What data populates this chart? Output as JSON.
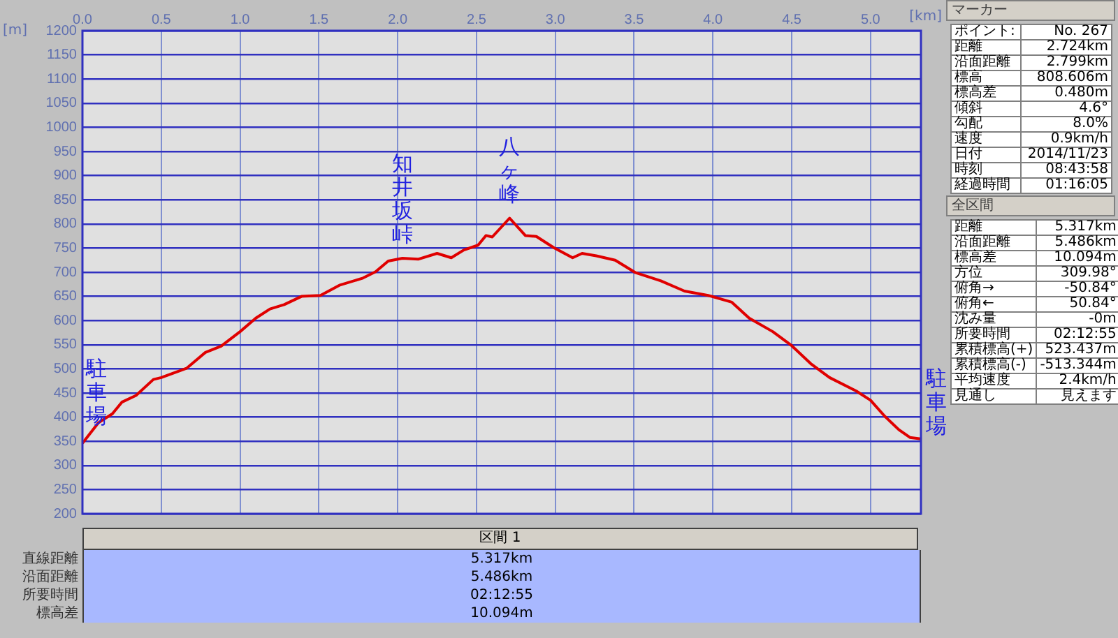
{
  "chart_data": [
    {
      "type": "line",
      "xlabel": "[km]",
      "ylabel": "[m]",
      "xlim": [
        0,
        5.32
      ],
      "xticks": [
        {
          "value": 0,
          "label": "0.0"
        },
        0.5,
        {
          "value": 1,
          "label": "1.0"
        },
        1.5,
        {
          "value": 2,
          "label": "2.0"
        },
        2.5,
        {
          "value": 3,
          "label": "3.0"
        },
        3.5,
        {
          "value": 4,
          "label": "4.0"
        },
        4.5,
        {
          "value": 5,
          "label": "5.0"
        }
      ],
      "ylim": [
        200,
        1200
      ],
      "yticks": [
        200,
        250,
        300,
        350,
        400,
        450,
        500,
        550,
        600,
        650,
        700,
        750,
        800,
        850,
        900,
        950,
        1000,
        1050,
        1100,
        1150,
        1200
      ],
      "grid": true,
      "legend": false,
      "marker": "none",
      "line_style": "solid",
      "series": [
        {
          "color": "#e00000",
          "x": [
            0,
            0.1,
            0.19,
            0.25,
            0.34,
            0.45,
            0.5,
            0.66,
            0.78,
            0.88,
            1.0,
            1.1,
            1.19,
            1.28,
            1.39,
            1.51,
            1.63,
            1.78,
            1.86,
            1.94,
            2.03,
            2.13,
            2.25,
            2.34,
            2.42,
            2.51,
            2.56,
            2.6,
            2.71,
            2.81,
            2.88,
            2.99,
            3.11,
            3.17,
            3.26,
            3.38,
            3.51,
            3.67,
            3.82,
            3.97,
            4.12,
            4.23,
            4.38,
            4.5,
            4.62,
            4.74,
            4.91,
            5.0,
            5.09,
            5.18,
            5.25,
            5.32
          ],
          "values": [
            346,
            388,
            407,
            431,
            445,
            478,
            482,
            501,
            534,
            547,
            577,
            605,
            624,
            633,
            650,
            652,
            673,
            688,
            701,
            723,
            729,
            727,
            739,
            730,
            746,
            756,
            776,
            773,
            812,
            776,
            774,
            751,
            730,
            739,
            734,
            725,
            699,
            682,
            661,
            652,
            638,
            605,
            577,
            548,
            511,
            482,
            454,
            435,
            402,
            374,
            358,
            355
          ]
        }
      ],
      "annotations": [
        {
          "text": "駐車場",
          "x": 0,
          "y": 346
        },
        {
          "text": "知井坂峠",
          "x": 2.03,
          "y": 729
        },
        {
          "text": "八ヶ峰",
          "x": 2.71,
          "y": 812
        },
        {
          "text": "駐車場",
          "x": 5.32,
          "y": 355
        }
      ]
    },
    {
      "type": "other",
      "title": "マーカー",
      "annotations": [
        "ポイント:",
        "No. 267",
        "距離",
        "2.724km",
        "沿面距離",
        "2.799km",
        "標高",
        "808.606m",
        "標高差",
        "0.480m",
        "傾斜",
        "4.6°",
        "勾配",
        "8.0%",
        "速度",
        "0.9km/h",
        "日付",
        "2014/11/23",
        "時刻",
        "08:43:58",
        "経過時間",
        "01:16:05"
      ]
    },
    {
      "type": "other",
      "title": "全区間",
      "annotations": [
        "距離",
        "5.317km",
        "沿面距離",
        "5.486km",
        "標高差",
        "10.094m",
        "方位",
        "309.98°",
        "俯角→",
        "-50.84°",
        "俯角←",
        "50.84°",
        "沈み量",
        "-0m",
        "所要時間",
        "02:12:55",
        "累積標高(+)",
        "523.437m",
        "累積標高(-)",
        "-513.344m",
        "平均速度",
        "2.4km/h",
        "見通し",
        "見えます"
      ]
    },
    {
      "type": "other",
      "title": "区間 1",
      "annotations": [
        "直線距離",
        "5.317km",
        "沿面距離",
        "5.486km",
        "所要時間",
        "02:12:55",
        "標高差",
        "10.094m"
      ]
    }
  ]
}
